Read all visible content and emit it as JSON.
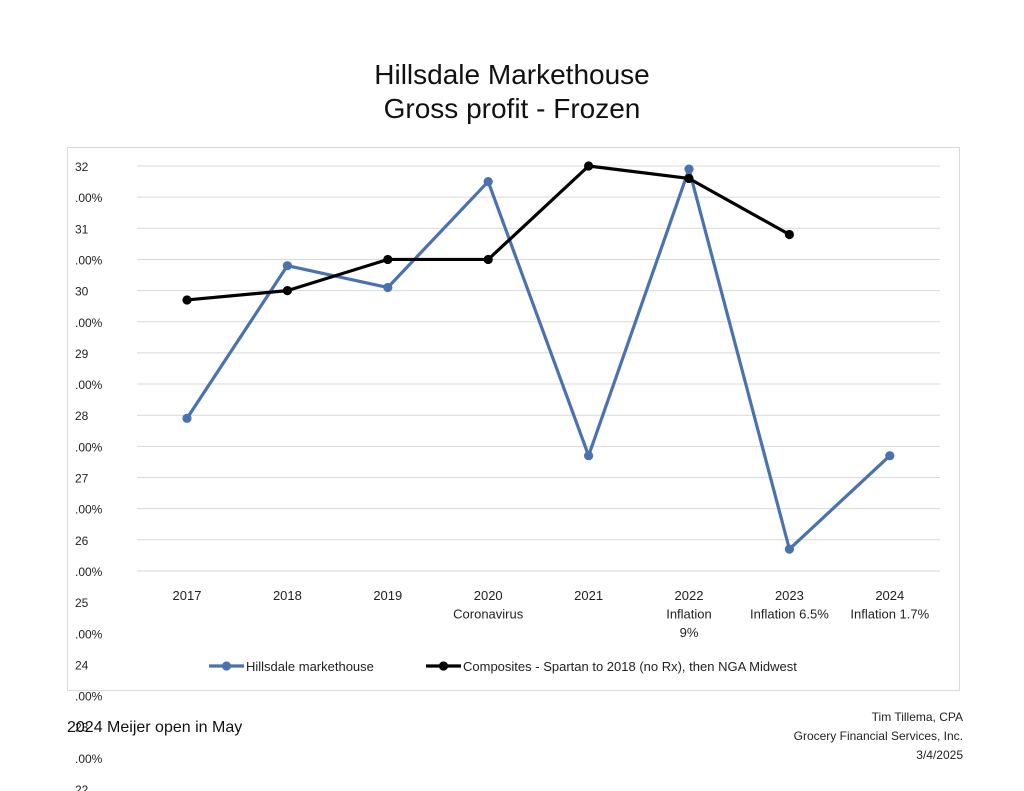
{
  "title_lines": [
    "Hillsdale Markethouse",
    "Gross profit - Frozen"
  ],
  "note": "2024 Meijer open in May",
  "credit": [
    "Tim Tillema, CPA",
    "Grocery Financial Services, Inc.",
    "3/4/2025"
  ],
  "chart_data": {
    "type": "line",
    "categories": [
      [
        "2017"
      ],
      [
        "2018"
      ],
      [
        "2019"
      ],
      [
        "2020",
        "Coronavirus"
      ],
      [
        "2021"
      ],
      [
        "2022",
        "Inflation",
        "9%"
      ],
      [
        "2023",
        "Inflation 6.5%"
      ],
      [
        "2024",
        "Inflation 1.7%"
      ]
    ],
    "y_ticks": [
      [
        "32",
        ".00%"
      ],
      [
        "31",
        ".00%"
      ],
      [
        "30",
        ".00%"
      ],
      [
        "29",
        ".00%"
      ],
      [
        "28",
        ".00%"
      ],
      [
        "27",
        ".00%"
      ],
      [
        "26",
        ".00%"
      ],
      [
        "25",
        ".00%"
      ],
      [
        "24",
        ".00%"
      ],
      [
        "23",
        ".00%"
      ],
      [
        "22"
      ]
    ],
    "ylim": [
      22,
      32
    ],
    "grid": true,
    "legend_position": "bottom",
    "series": [
      {
        "name": "Hillsdale markethouse",
        "color": "#4a72b0",
        "values": [
          27.95,
          30.4,
          30.05,
          31.75,
          27.35,
          31.95,
          25.85,
          27.35
        ]
      },
      {
        "name": "Composites - Spartan to 2018 (no Rx), then NGA Midwest",
        "color": "#000000",
        "values": [
          29.85,
          30.0,
          30.5,
          30.5,
          32.0,
          31.8,
          30.9,
          null
        ]
      }
    ]
  }
}
